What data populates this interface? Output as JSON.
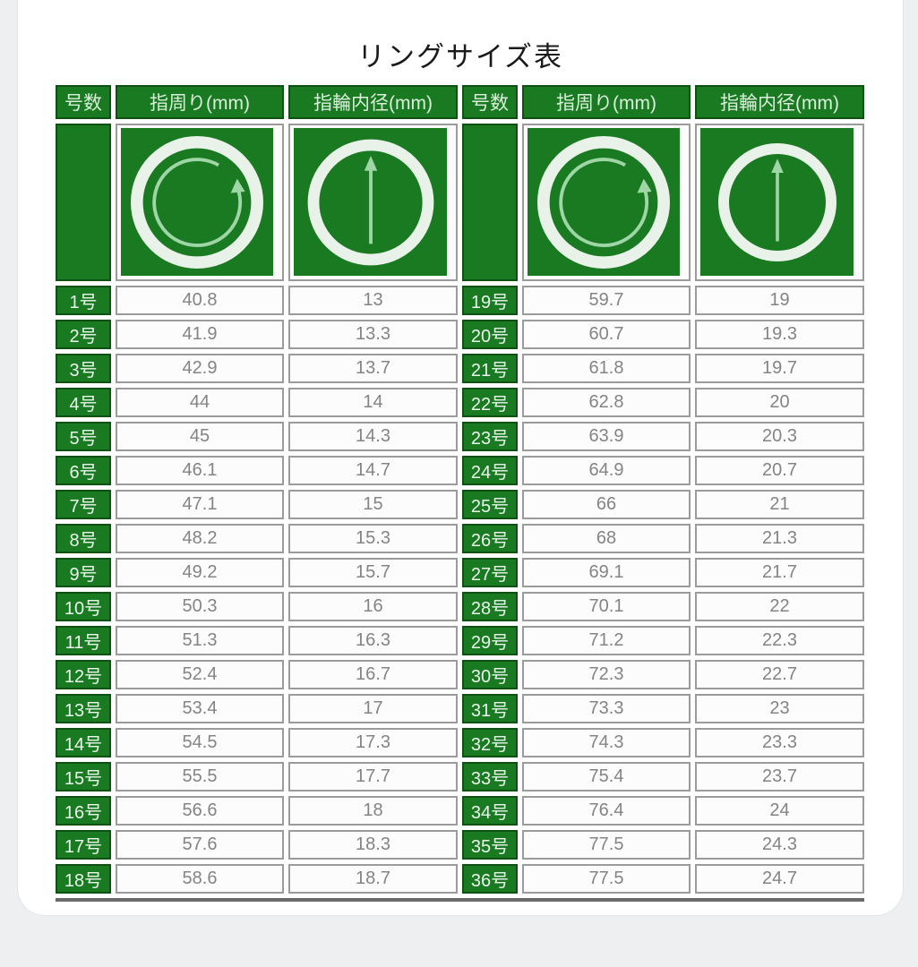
{
  "title": "リングサイズ表",
  "table": {
    "column_headers": [
      "号数",
      "指周り(mm)",
      "指輪内径(mm)",
      "号数",
      "指周り(mm)",
      "指輪内径(mm)"
    ],
    "icon_legend": {
      "circumference_icon": "ring-with-circular-arrow",
      "inner_diameter_icon": "ring-with-vertical-diameter-arrow"
    },
    "left_rows": [
      {
        "size": "1号",
        "circumference": "40.8",
        "inner_diameter": "13"
      },
      {
        "size": "2号",
        "circumference": "41.9",
        "inner_diameter": "13.3"
      },
      {
        "size": "3号",
        "circumference": "42.9",
        "inner_diameter": "13.7"
      },
      {
        "size": "4号",
        "circumference": "44",
        "inner_diameter": "14"
      },
      {
        "size": "5号",
        "circumference": "45",
        "inner_diameter": "14.3"
      },
      {
        "size": "6号",
        "circumference": "46.1",
        "inner_diameter": "14.7"
      },
      {
        "size": "7号",
        "circumference": "47.1",
        "inner_diameter": "15"
      },
      {
        "size": "8号",
        "circumference": "48.2",
        "inner_diameter": "15.3"
      },
      {
        "size": "9号",
        "circumference": "49.2",
        "inner_diameter": "15.7"
      },
      {
        "size": "10号",
        "circumference": "50.3",
        "inner_diameter": "16"
      },
      {
        "size": "11号",
        "circumference": "51.3",
        "inner_diameter": "16.3"
      },
      {
        "size": "12号",
        "circumference": "52.4",
        "inner_diameter": "16.7"
      },
      {
        "size": "13号",
        "circumference": "53.4",
        "inner_diameter": "17"
      },
      {
        "size": "14号",
        "circumference": "54.5",
        "inner_diameter": "17.3"
      },
      {
        "size": "15号",
        "circumference": "55.5",
        "inner_diameter": "17.7"
      },
      {
        "size": "16号",
        "circumference": "56.6",
        "inner_diameter": "18"
      },
      {
        "size": "17号",
        "circumference": "57.6",
        "inner_diameter": "18.3"
      },
      {
        "size": "18号",
        "circumference": "58.6",
        "inner_diameter": "18.7"
      }
    ],
    "right_rows": [
      {
        "size": "19号",
        "circumference": "59.7",
        "inner_diameter": "19"
      },
      {
        "size": "20号",
        "circumference": "60.7",
        "inner_diameter": "19.3"
      },
      {
        "size": "21号",
        "circumference": "61.8",
        "inner_diameter": "19.7"
      },
      {
        "size": "22号",
        "circumference": "62.8",
        "inner_diameter": "20"
      },
      {
        "size": "23号",
        "circumference": "63.9",
        "inner_diameter": "20.3"
      },
      {
        "size": "24号",
        "circumference": "64.9",
        "inner_diameter": "20.7"
      },
      {
        "size": "25号",
        "circumference": "66",
        "inner_diameter": "21"
      },
      {
        "size": "26号",
        "circumference": "68",
        "inner_diameter": "21.3"
      },
      {
        "size": "27号",
        "circumference": "69.1",
        "inner_diameter": "21.7"
      },
      {
        "size": "28号",
        "circumference": "70.1",
        "inner_diameter": "22"
      },
      {
        "size": "29号",
        "circumference": "71.2",
        "inner_diameter": "22.3"
      },
      {
        "size": "30号",
        "circumference": "72.3",
        "inner_diameter": "22.7"
      },
      {
        "size": "31号",
        "circumference": "73.3",
        "inner_diameter": "23"
      },
      {
        "size": "32号",
        "circumference": "74.3",
        "inner_diameter": "23.3"
      },
      {
        "size": "33号",
        "circumference": "75.4",
        "inner_diameter": "23.7"
      },
      {
        "size": "34号",
        "circumference": "76.4",
        "inner_diameter": "24"
      },
      {
        "size": "35号",
        "circumference": "77.5",
        "inner_diameter": "24.3"
      },
      {
        "size": "36号",
        "circumference": "77.5",
        "inner_diameter": "24.7"
      }
    ]
  },
  "colors": {
    "header_green": "#1a7a22",
    "header_green_border": "#0d5213",
    "header_text": "#d9efdb",
    "label_text": "#eaf6ec",
    "value_text": "#848484",
    "cell_border": "#9b9b9b",
    "cell_bg": "#fcfcfc",
    "ring_white": "#e9f2e9",
    "arrow_green": "#9fd6a6",
    "table_bottom": "#6a6a6a",
    "page_bg": "#edeff0",
    "card_bg": "#ffffff"
  },
  "chart_data": {
    "type": "table",
    "title": "リングサイズ表",
    "columns": [
      "号数",
      "指周り(mm)",
      "指輪内径(mm)"
    ],
    "rows": [
      [
        "1号",
        40.8,
        13
      ],
      [
        "2号",
        41.9,
        13.3
      ],
      [
        "3号",
        42.9,
        13.7
      ],
      [
        "4号",
        44,
        14
      ],
      [
        "5号",
        45,
        14.3
      ],
      [
        "6号",
        46.1,
        14.7
      ],
      [
        "7号",
        47.1,
        15
      ],
      [
        "8号",
        48.2,
        15.3
      ],
      [
        "9号",
        49.2,
        15.7
      ],
      [
        "10号",
        50.3,
        16
      ],
      [
        "11号",
        51.3,
        16.3
      ],
      [
        "12号",
        52.4,
        16.7
      ],
      [
        "13号",
        53.4,
        17
      ],
      [
        "14号",
        54.5,
        17.3
      ],
      [
        "15号",
        55.5,
        17.7
      ],
      [
        "16号",
        56.6,
        18
      ],
      [
        "17号",
        57.6,
        18.3
      ],
      [
        "18号",
        58.6,
        18.7
      ],
      [
        "19号",
        59.7,
        19
      ],
      [
        "20号",
        60.7,
        19.3
      ],
      [
        "21号",
        61.8,
        19.7
      ],
      [
        "22号",
        62.8,
        20
      ],
      [
        "23号",
        63.9,
        20.3
      ],
      [
        "24号",
        64.9,
        20.7
      ],
      [
        "25号",
        66,
        21
      ],
      [
        "26号",
        68,
        21.3
      ],
      [
        "27号",
        69.1,
        21.7
      ],
      [
        "28号",
        70.1,
        22
      ],
      [
        "29号",
        71.2,
        22.3
      ],
      [
        "30号",
        72.3,
        22.7
      ],
      [
        "31号",
        73.3,
        23
      ],
      [
        "32号",
        74.3,
        23.3
      ],
      [
        "33号",
        75.4,
        23.7
      ],
      [
        "34号",
        76.4,
        24
      ],
      [
        "35号",
        77.5,
        24.3
      ],
      [
        "36号",
        77.5,
        24.7
      ]
    ],
    "layout": "two side-by-side groups: rows 1-18 left, rows 19-36 right"
  }
}
